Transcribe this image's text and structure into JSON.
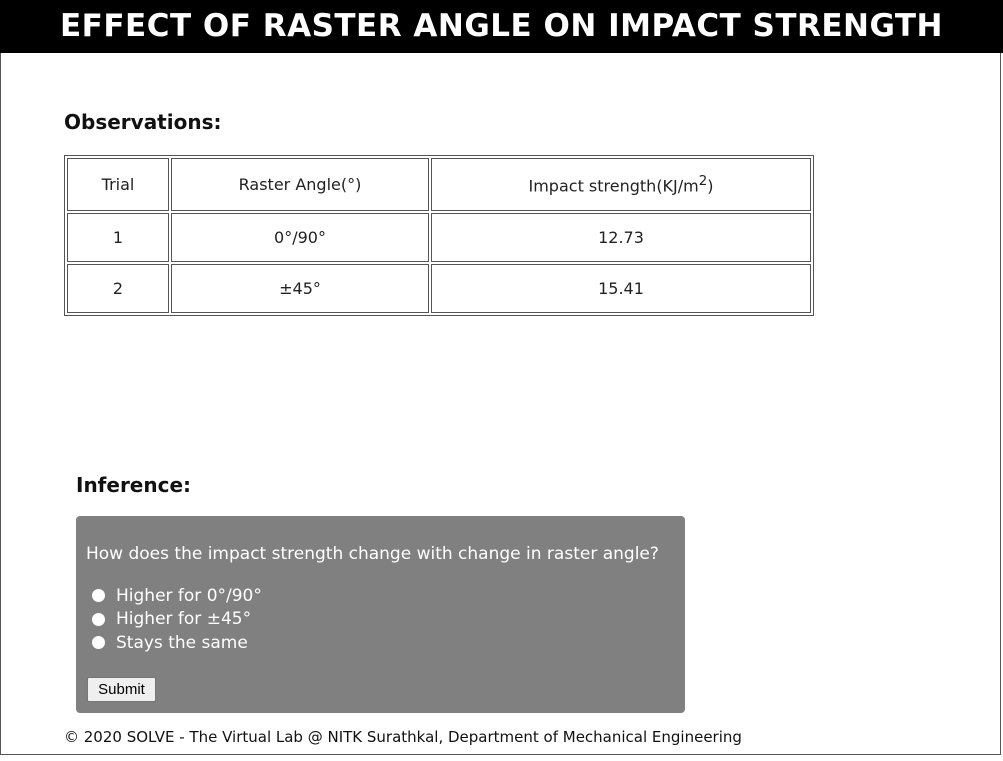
{
  "header": {
    "title": "EFFECT OF RASTER ANGLE ON IMPACT STRENGTH"
  },
  "observations": {
    "heading": "Observations:",
    "columns": [
      "Trial",
      "Raster Angle(°)",
      "Impact strength(KJ/m",
      "2",
      ")"
    ],
    "rows": [
      [
        "1",
        "0°/90°",
        "12.73"
      ],
      [
        "2",
        "±45°",
        "15.41"
      ]
    ]
  },
  "inference": {
    "heading": "Inference:",
    "question": "How does the impact strength change with change in raster angle?",
    "options": [
      "Higher for 0°/90°",
      "Higher for ±45°",
      "Stays the same"
    ],
    "submit_label": "Submit"
  },
  "footer": {
    "text": "© 2020 SOLVE - The Virtual Lab @ NITK Surathkal, Department of Mechanical Engineering"
  },
  "colors": {
    "banner_bg": "#000000",
    "quiz_bg": "#808080"
  }
}
